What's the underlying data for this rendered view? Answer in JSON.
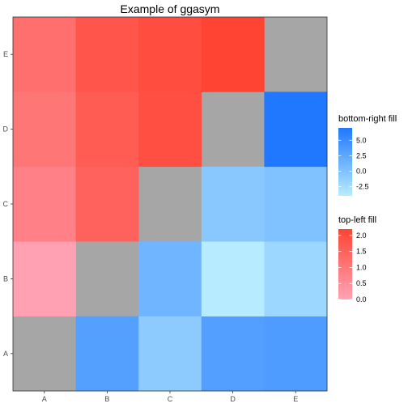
{
  "chart_data": {
    "type": "heatmap",
    "title": "Example of ggasym",
    "xlabel": "",
    "ylabel": "",
    "x": [
      "A",
      "B",
      "C",
      "D",
      "E"
    ],
    "y": [
      "A",
      "B",
      "C",
      "D",
      "E"
    ],
    "diagonal_color": "#a6a6a6",
    "top_left": {
      "legend_title": "top-left fill",
      "range": [
        0.0,
        2.2
      ],
      "low_color": "#ffa3b5",
      "high_color": "#ff4433",
      "breaks": [
        "0.0",
        "0.5",
        "1.0",
        "1.5",
        "2.0"
      ],
      "break_values": [
        0.0,
        0.5,
        1.0,
        1.5,
        2.0
      ],
      "cells": [
        {
          "x": "A",
          "y": "B",
          "value": 0.05
        },
        {
          "x": "A",
          "y": "C",
          "value": 0.8
        },
        {
          "x": "A",
          "y": "D",
          "value": 1.05
        },
        {
          "x": "A",
          "y": "E",
          "value": 1.2
        },
        {
          "x": "B",
          "y": "C",
          "value": 1.5
        },
        {
          "x": "B",
          "y": "D",
          "value": 1.65
        },
        {
          "x": "B",
          "y": "E",
          "value": 1.8
        },
        {
          "x": "C",
          "y": "D",
          "value": 1.95
        },
        {
          "x": "C",
          "y": "E",
          "value": 2.0
        },
        {
          "x": "D",
          "y": "E",
          "value": 2.2
        }
      ]
    },
    "bottom_right": {
      "legend_title": "bottom-right fill",
      "range": [
        -4.0,
        7.0
      ],
      "low_color": "#b8ecff",
      "high_color": "#1f78ff",
      "breaks": [
        "-2.5",
        "0.0",
        "2.5",
        "5.0"
      ],
      "break_values": [
        -2.5,
        0.0,
        2.5,
        5.0
      ],
      "cells": [
        {
          "x": "B",
          "y": "A",
          "value": 3.2
        },
        {
          "x": "C",
          "y": "A",
          "value": -0.9
        },
        {
          "x": "D",
          "y": "A",
          "value": 3.3
        },
        {
          "x": "E",
          "y": "A",
          "value": 3.6
        },
        {
          "x": "C",
          "y": "B",
          "value": 1.2
        },
        {
          "x": "D",
          "y": "B",
          "value": -3.9
        },
        {
          "x": "E",
          "y": "B",
          "value": -2.0
        },
        {
          "x": "D",
          "y": "C",
          "value": -0.6
        },
        {
          "x": "E",
          "y": "C",
          "value": 0.0
        },
        {
          "x": "E",
          "y": "D",
          "value": 7.0
        }
      ]
    }
  }
}
